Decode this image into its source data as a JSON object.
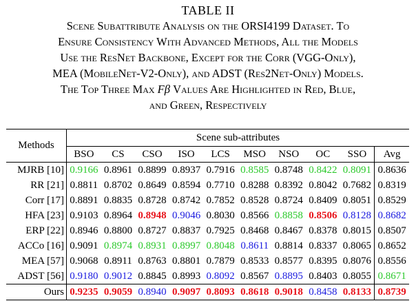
{
  "caption": {
    "table_number": "TABLE II",
    "lines": [
      "Scene Subattribute Analysis on the ORSI4199 Dataset. To",
      "Ensure Consistency With Advanced Methods, All the Models",
      "Use the ResNet Backbone, Except for the Corr (VGG-Only),",
      "MEA (MobileNet-V2-Only), and ADST (Res2Net-Only) Models.",
      "The Top Three Max "
    ],
    "line5_var": "Fβ",
    "line5_rest": " Values Are Highlighted in Red, Blue,",
    "line6": "and Green, Respectively"
  },
  "colors": {
    "red": "#e8131b",
    "blue": "#1a1adf",
    "green": "#2bc92b"
  },
  "table": {
    "methods_header": "Methods",
    "group_header": "Scene sub-attributes",
    "columns": [
      "BSO",
      "CS",
      "CSO",
      "ISO",
      "LCS",
      "MSO",
      "NSO",
      "OC",
      "SSO",
      "Avg"
    ],
    "rows": [
      {
        "method": "MJRB [10]",
        "values": [
          "0.9166",
          "0.8961",
          "0.8899",
          "0.8937",
          "0.7916",
          "0.8585",
          "0.8748",
          "0.8422",
          "0.8091",
          "0.8636"
        ],
        "styles": [
          "green",
          "",
          "",
          "",
          "",
          "green",
          "",
          "green",
          "green",
          ""
        ]
      },
      {
        "method": "RR [21]",
        "values": [
          "0.8811",
          "0.8702",
          "0.8649",
          "0.8594",
          "0.7710",
          "0.8288",
          "0.8392",
          "0.8042",
          "0.7682",
          "0.8319"
        ],
        "styles": [
          "",
          "",
          "",
          "",
          "",
          "",
          "",
          "",
          "",
          ""
        ]
      },
      {
        "method": "Corr [17]",
        "values": [
          "0.8891",
          "0.8835",
          "0.8728",
          "0.8742",
          "0.7852",
          "0.8528",
          "0.8724",
          "0.8409",
          "0.8051",
          "0.8529"
        ],
        "styles": [
          "",
          "",
          "",
          "",
          "",
          "",
          "",
          "",
          "",
          ""
        ]
      },
      {
        "method": "HFA [23]",
        "values": [
          "0.9103",
          "0.8964",
          "0.8948",
          "0.9046",
          "0.8030",
          "0.8566",
          "0.8858",
          "0.8506",
          "0.8128",
          "0.8682"
        ],
        "styles": [
          "",
          "",
          "red",
          "blue",
          "",
          "",
          "green",
          "red",
          "blue",
          "blue"
        ]
      },
      {
        "method": "ERP [22]",
        "values": [
          "0.8946",
          "0.8800",
          "0.8727",
          "0.8837",
          "0.7925",
          "0.8468",
          "0.8467",
          "0.8378",
          "0.8015",
          "0.8507"
        ],
        "styles": [
          "",
          "",
          "",
          "",
          "",
          "",
          "",
          "",
          "",
          ""
        ]
      },
      {
        "method": "ACCo [16]",
        "values": [
          "0.9091",
          "0.8974",
          "0.8931",
          "0.8997",
          "0.8048",
          "0.8611",
          "0.8814",
          "0.8337",
          "0.8065",
          "0.8652"
        ],
        "styles": [
          "",
          "green",
          "green",
          "green",
          "green",
          "blue",
          "",
          "",
          "",
          ""
        ]
      },
      {
        "method": "MEA [57]",
        "values": [
          "0.9068",
          "0.8911",
          "0.8763",
          "0.8801",
          "0.7879",
          "0.8533",
          "0.8577",
          "0.8395",
          "0.8076",
          "0.8556"
        ],
        "styles": [
          "",
          "",
          "",
          "",
          "",
          "",
          "",
          "",
          "",
          ""
        ]
      },
      {
        "method": "ADST [56]",
        "values": [
          "0.9180",
          "0.9012",
          "0.8845",
          "0.8993",
          "0.8092",
          "0.8567",
          "0.8895",
          "0.8403",
          "0.8055",
          "0.8671"
        ],
        "styles": [
          "blue",
          "blue",
          "",
          "",
          "blue",
          "",
          "blue",
          "",
          "",
          "green"
        ]
      }
    ],
    "ours": {
      "method": "Ours",
      "values": [
        "0.9235",
        "0.9059",
        "0.8940",
        "0.9097",
        "0.8093",
        "0.8618",
        "0.9018",
        "0.8458",
        "0.8133",
        "0.8739"
      ],
      "styles": [
        "red",
        "red",
        "blue",
        "red",
        "red",
        "red",
        "red",
        "blue",
        "red",
        "red"
      ]
    }
  }
}
